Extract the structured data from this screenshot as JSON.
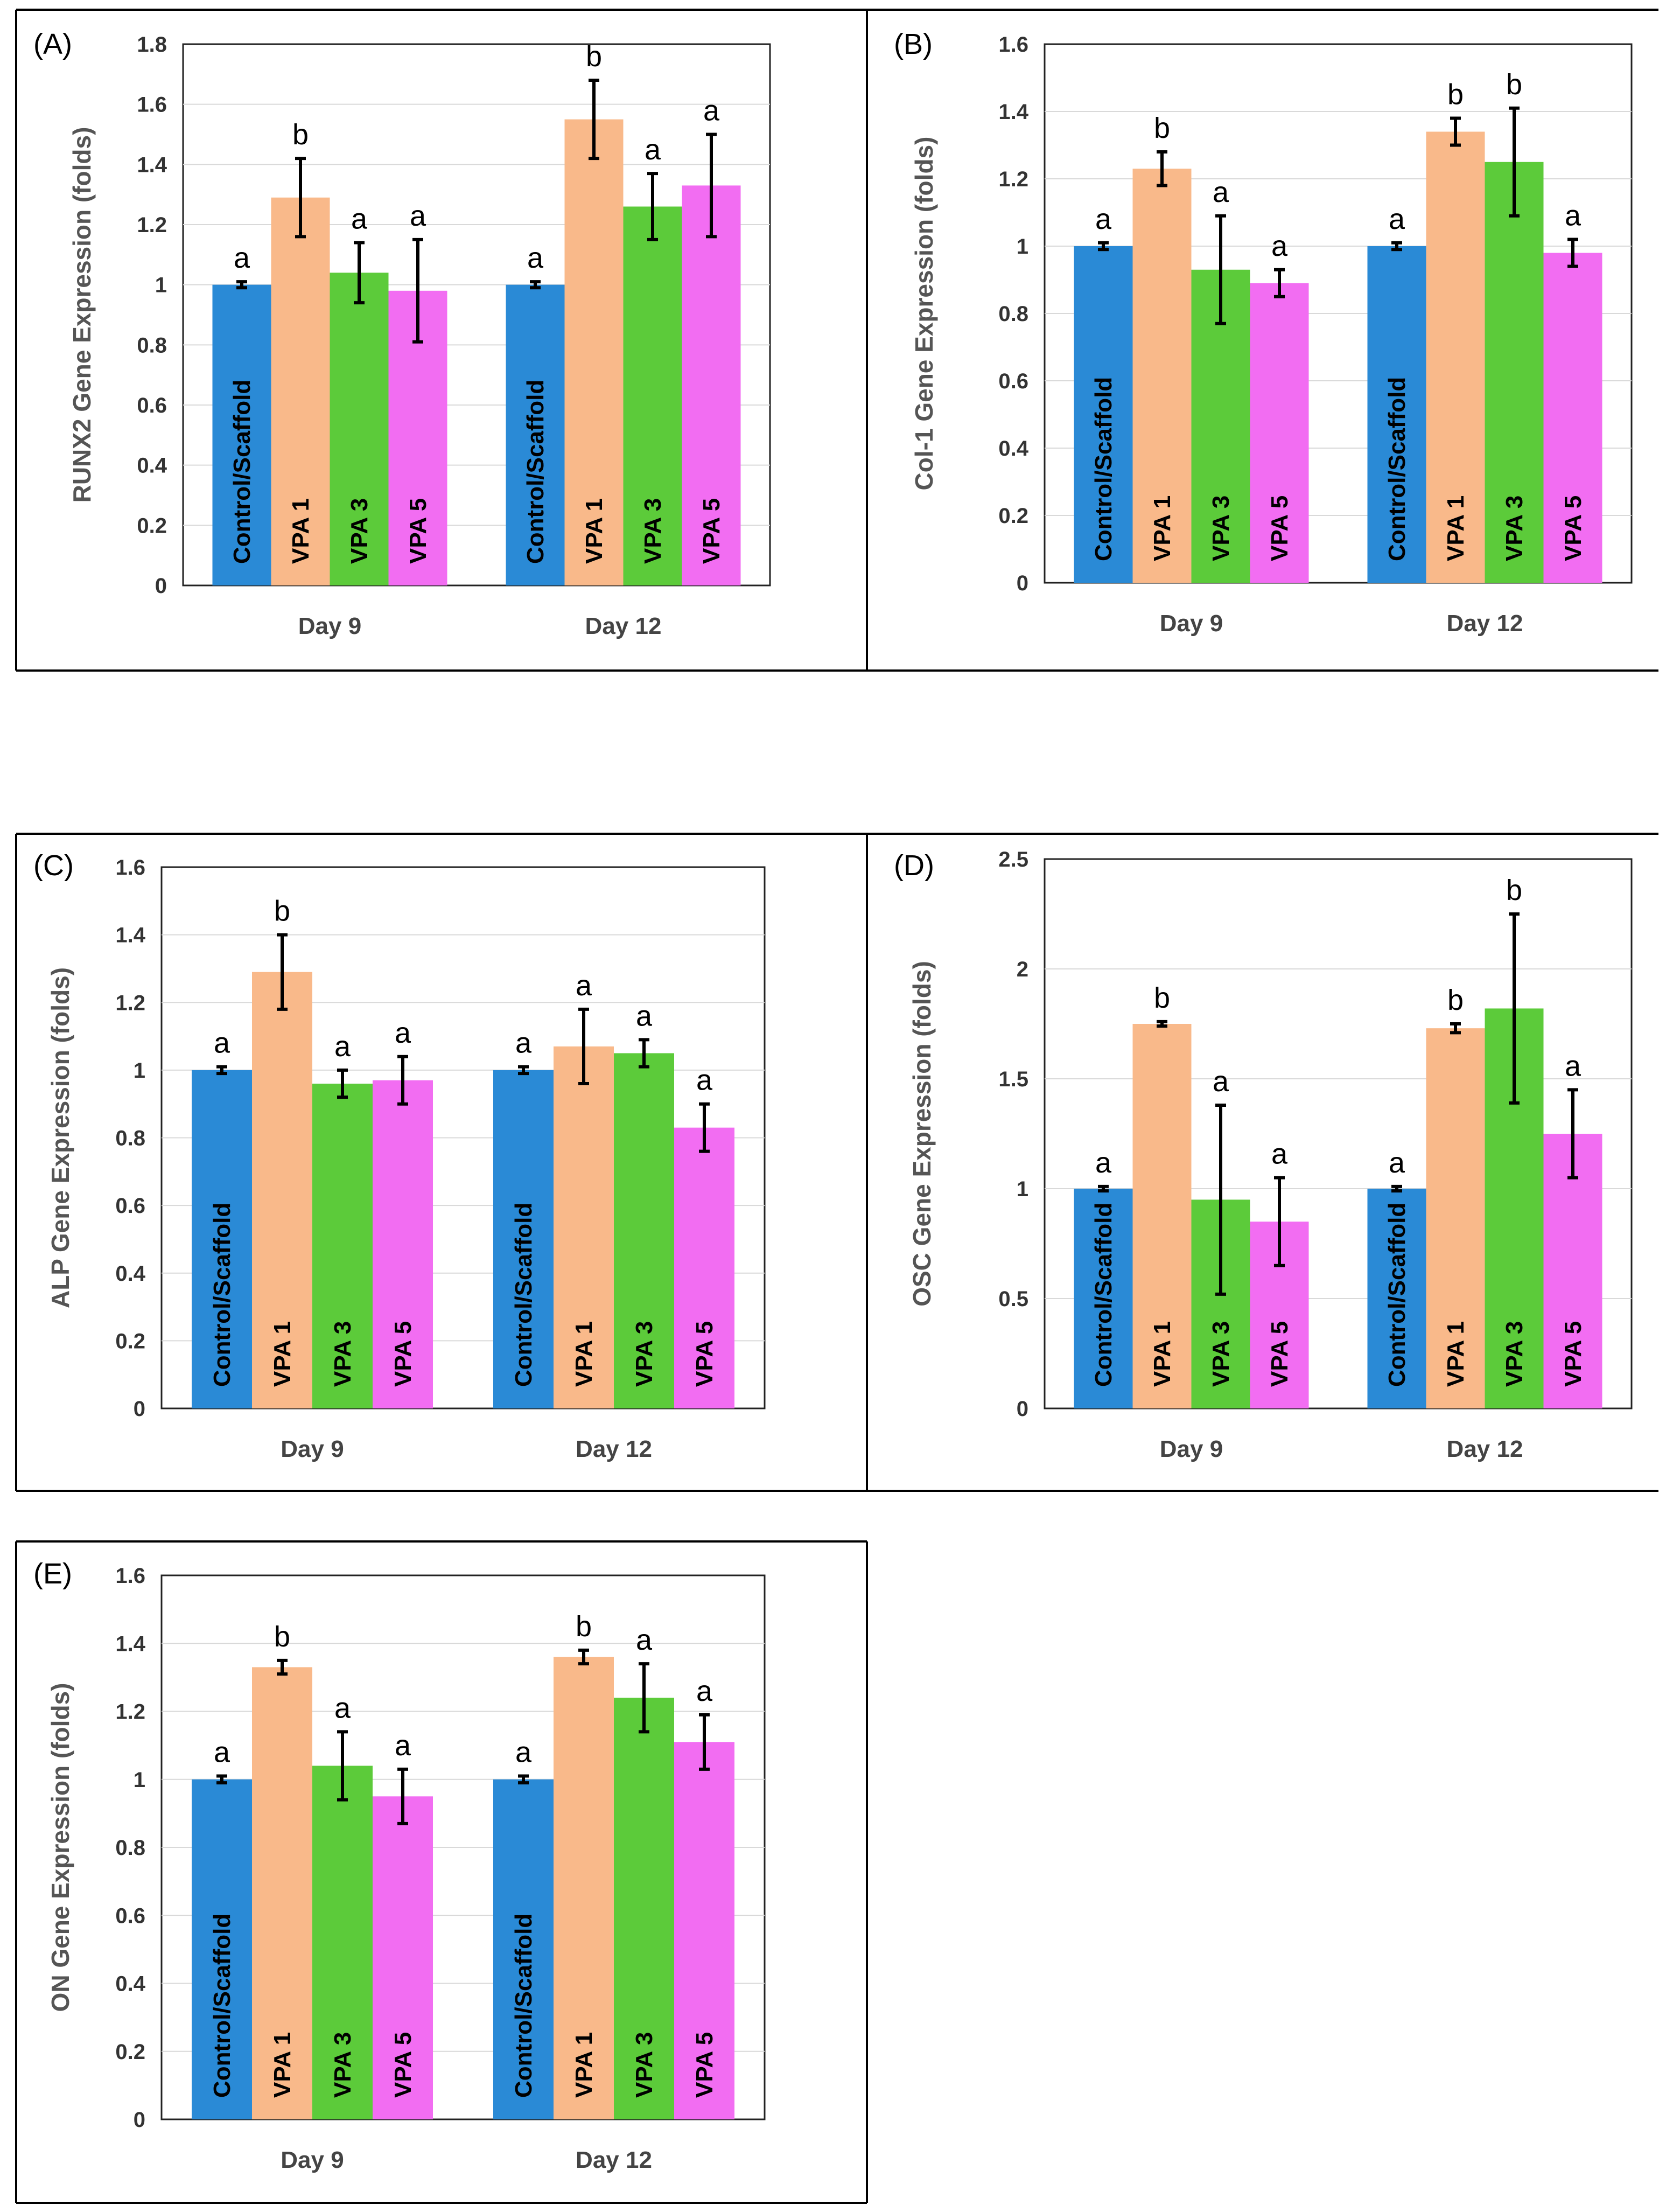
{
  "figure": {
    "group_labels": [
      "Day 9",
      "Day 12"
    ],
    "bar_labels": [
      "Control/Scaffold",
      "VPA 1",
      "VPA 3",
      "VPA 5"
    ],
    "colors": {
      "control": "#2a8ad6",
      "vpa1": "#f9b98a",
      "vpa3": "#5ccb3a",
      "vpa5": "#f26df2"
    }
  },
  "chart_data": [
    {
      "panel": "(A)",
      "type": "bar",
      "ylabel": "RUNX2 Gene Expression (folds)",
      "ylim": [
        0,
        1.8
      ],
      "yticks": [
        "0",
        "0.2",
        "0.4",
        "0.6",
        "0.8",
        "1",
        "1.2",
        "1.4",
        "1.6",
        "1.8"
      ],
      "categories": [
        "Day 9",
        "Day 12"
      ],
      "series": [
        {
          "name": "Control/Scaffold",
          "values": [
            1.0,
            1.0
          ],
          "errors": [
            0.01,
            0.01
          ],
          "sig": [
            "a",
            "a"
          ]
        },
        {
          "name": "VPA 1",
          "values": [
            1.29,
            1.55
          ],
          "errors": [
            0.13,
            0.13
          ],
          "sig": [
            "b",
            "b"
          ]
        },
        {
          "name": "VPA 3",
          "values": [
            1.04,
            1.26
          ],
          "errors": [
            0.1,
            0.11
          ],
          "sig": [
            "a",
            "a"
          ]
        },
        {
          "name": "VPA 5",
          "values": [
            0.98,
            1.33
          ],
          "errors": [
            0.17,
            0.17
          ],
          "sig": [
            "a",
            "a"
          ]
        }
      ]
    },
    {
      "panel": "(B)",
      "type": "bar",
      "ylabel": "Col-1 Gene Expression (folds)",
      "ylim": [
        0,
        1.6
      ],
      "yticks": [
        "0",
        "0.2",
        "0.4",
        "0.6",
        "0.8",
        "1",
        "1.2",
        "1.4",
        "1.6"
      ],
      "categories": [
        "Day 9",
        "Day 12"
      ],
      "series": [
        {
          "name": "Control/Scaffold",
          "values": [
            1.0,
            1.0
          ],
          "errors": [
            0.01,
            0.01
          ],
          "sig": [
            "a",
            "a"
          ]
        },
        {
          "name": "VPA 1",
          "values": [
            1.23,
            1.34
          ],
          "errors": [
            0.05,
            0.04
          ],
          "sig": [
            "b",
            "b"
          ]
        },
        {
          "name": "VPA 3",
          "values": [
            0.93,
            1.25
          ],
          "errors": [
            0.16,
            0.16
          ],
          "sig": [
            "a",
            "b"
          ]
        },
        {
          "name": "VPA 5",
          "values": [
            0.89,
            0.98
          ],
          "errors": [
            0.04,
            0.04
          ],
          "sig": [
            "a",
            "a"
          ]
        }
      ]
    },
    {
      "panel": "(C)",
      "type": "bar",
      "ylabel": "ALP Gene Expression (folds)",
      "ylim": [
        0,
        1.6
      ],
      "yticks": [
        "0",
        "0.2",
        "0.4",
        "0.6",
        "0.8",
        "1",
        "1.2",
        "1.4",
        "1.6"
      ],
      "categories": [
        "Day 9",
        "Day 12"
      ],
      "series": [
        {
          "name": "Control/Scaffold",
          "values": [
            1.0,
            1.0
          ],
          "errors": [
            0.01,
            0.01
          ],
          "sig": [
            "a",
            "a"
          ]
        },
        {
          "name": "VPA 1",
          "values": [
            1.29,
            1.07
          ],
          "errors": [
            0.11,
            0.11
          ],
          "sig": [
            "b",
            "a"
          ]
        },
        {
          "name": "VPA 3",
          "values": [
            0.96,
            1.05
          ],
          "errors": [
            0.04,
            0.04
          ],
          "sig": [
            "a",
            "a"
          ]
        },
        {
          "name": "VPA 5",
          "values": [
            0.97,
            0.83
          ],
          "errors": [
            0.07,
            0.07
          ],
          "sig": [
            "a",
            "a"
          ]
        }
      ]
    },
    {
      "panel": "(D)",
      "type": "bar",
      "ylabel": "OSC Gene Expression (folds)",
      "ylim": [
        0,
        2.5
      ],
      "yticks": [
        "0",
        "0.5",
        "1",
        "1.5",
        "2",
        "2.5"
      ],
      "categories": [
        "Day 9",
        "Day 12"
      ],
      "series": [
        {
          "name": "Control/Scaffold",
          "values": [
            1.0,
            1.0
          ],
          "errors": [
            0.01,
            0.01
          ],
          "sig": [
            "a",
            "a"
          ]
        },
        {
          "name": "VPA 1",
          "values": [
            1.75,
            1.73
          ],
          "errors": [
            0.01,
            0.02
          ],
          "sig": [
            "b",
            "b"
          ]
        },
        {
          "name": "VPA 3",
          "values": [
            0.95,
            1.82
          ],
          "errors": [
            0.43,
            0.43
          ],
          "sig": [
            "a",
            "b"
          ]
        },
        {
          "name": "VPA 5",
          "values": [
            0.85,
            1.25
          ],
          "errors": [
            0.2,
            0.2
          ],
          "sig": [
            "a",
            "a"
          ]
        }
      ]
    },
    {
      "panel": "(E)",
      "type": "bar",
      "ylabel": "ON Gene Expression (folds)",
      "ylim": [
        0,
        1.6
      ],
      "yticks": [
        "0",
        "0.2",
        "0.4",
        "0.6",
        "0.8",
        "1",
        "1.2",
        "1.4",
        "1.6"
      ],
      "categories": [
        "Day 9",
        "Day 12"
      ],
      "series": [
        {
          "name": "Control/Scaffold",
          "values": [
            1.0,
            1.0
          ],
          "errors": [
            0.01,
            0.01
          ],
          "sig": [
            "a",
            "a"
          ]
        },
        {
          "name": "VPA 1",
          "values": [
            1.33,
            1.36
          ],
          "errors": [
            0.02,
            0.02
          ],
          "sig": [
            "b",
            "b"
          ]
        },
        {
          "name": "VPA 3",
          "values": [
            1.04,
            1.24
          ],
          "errors": [
            0.1,
            0.1
          ],
          "sig": [
            "a",
            "a"
          ]
        },
        {
          "name": "VPA 5",
          "values": [
            0.95,
            1.11
          ],
          "errors": [
            0.08,
            0.08
          ],
          "sig": [
            "a",
            "a"
          ]
        }
      ]
    }
  ]
}
